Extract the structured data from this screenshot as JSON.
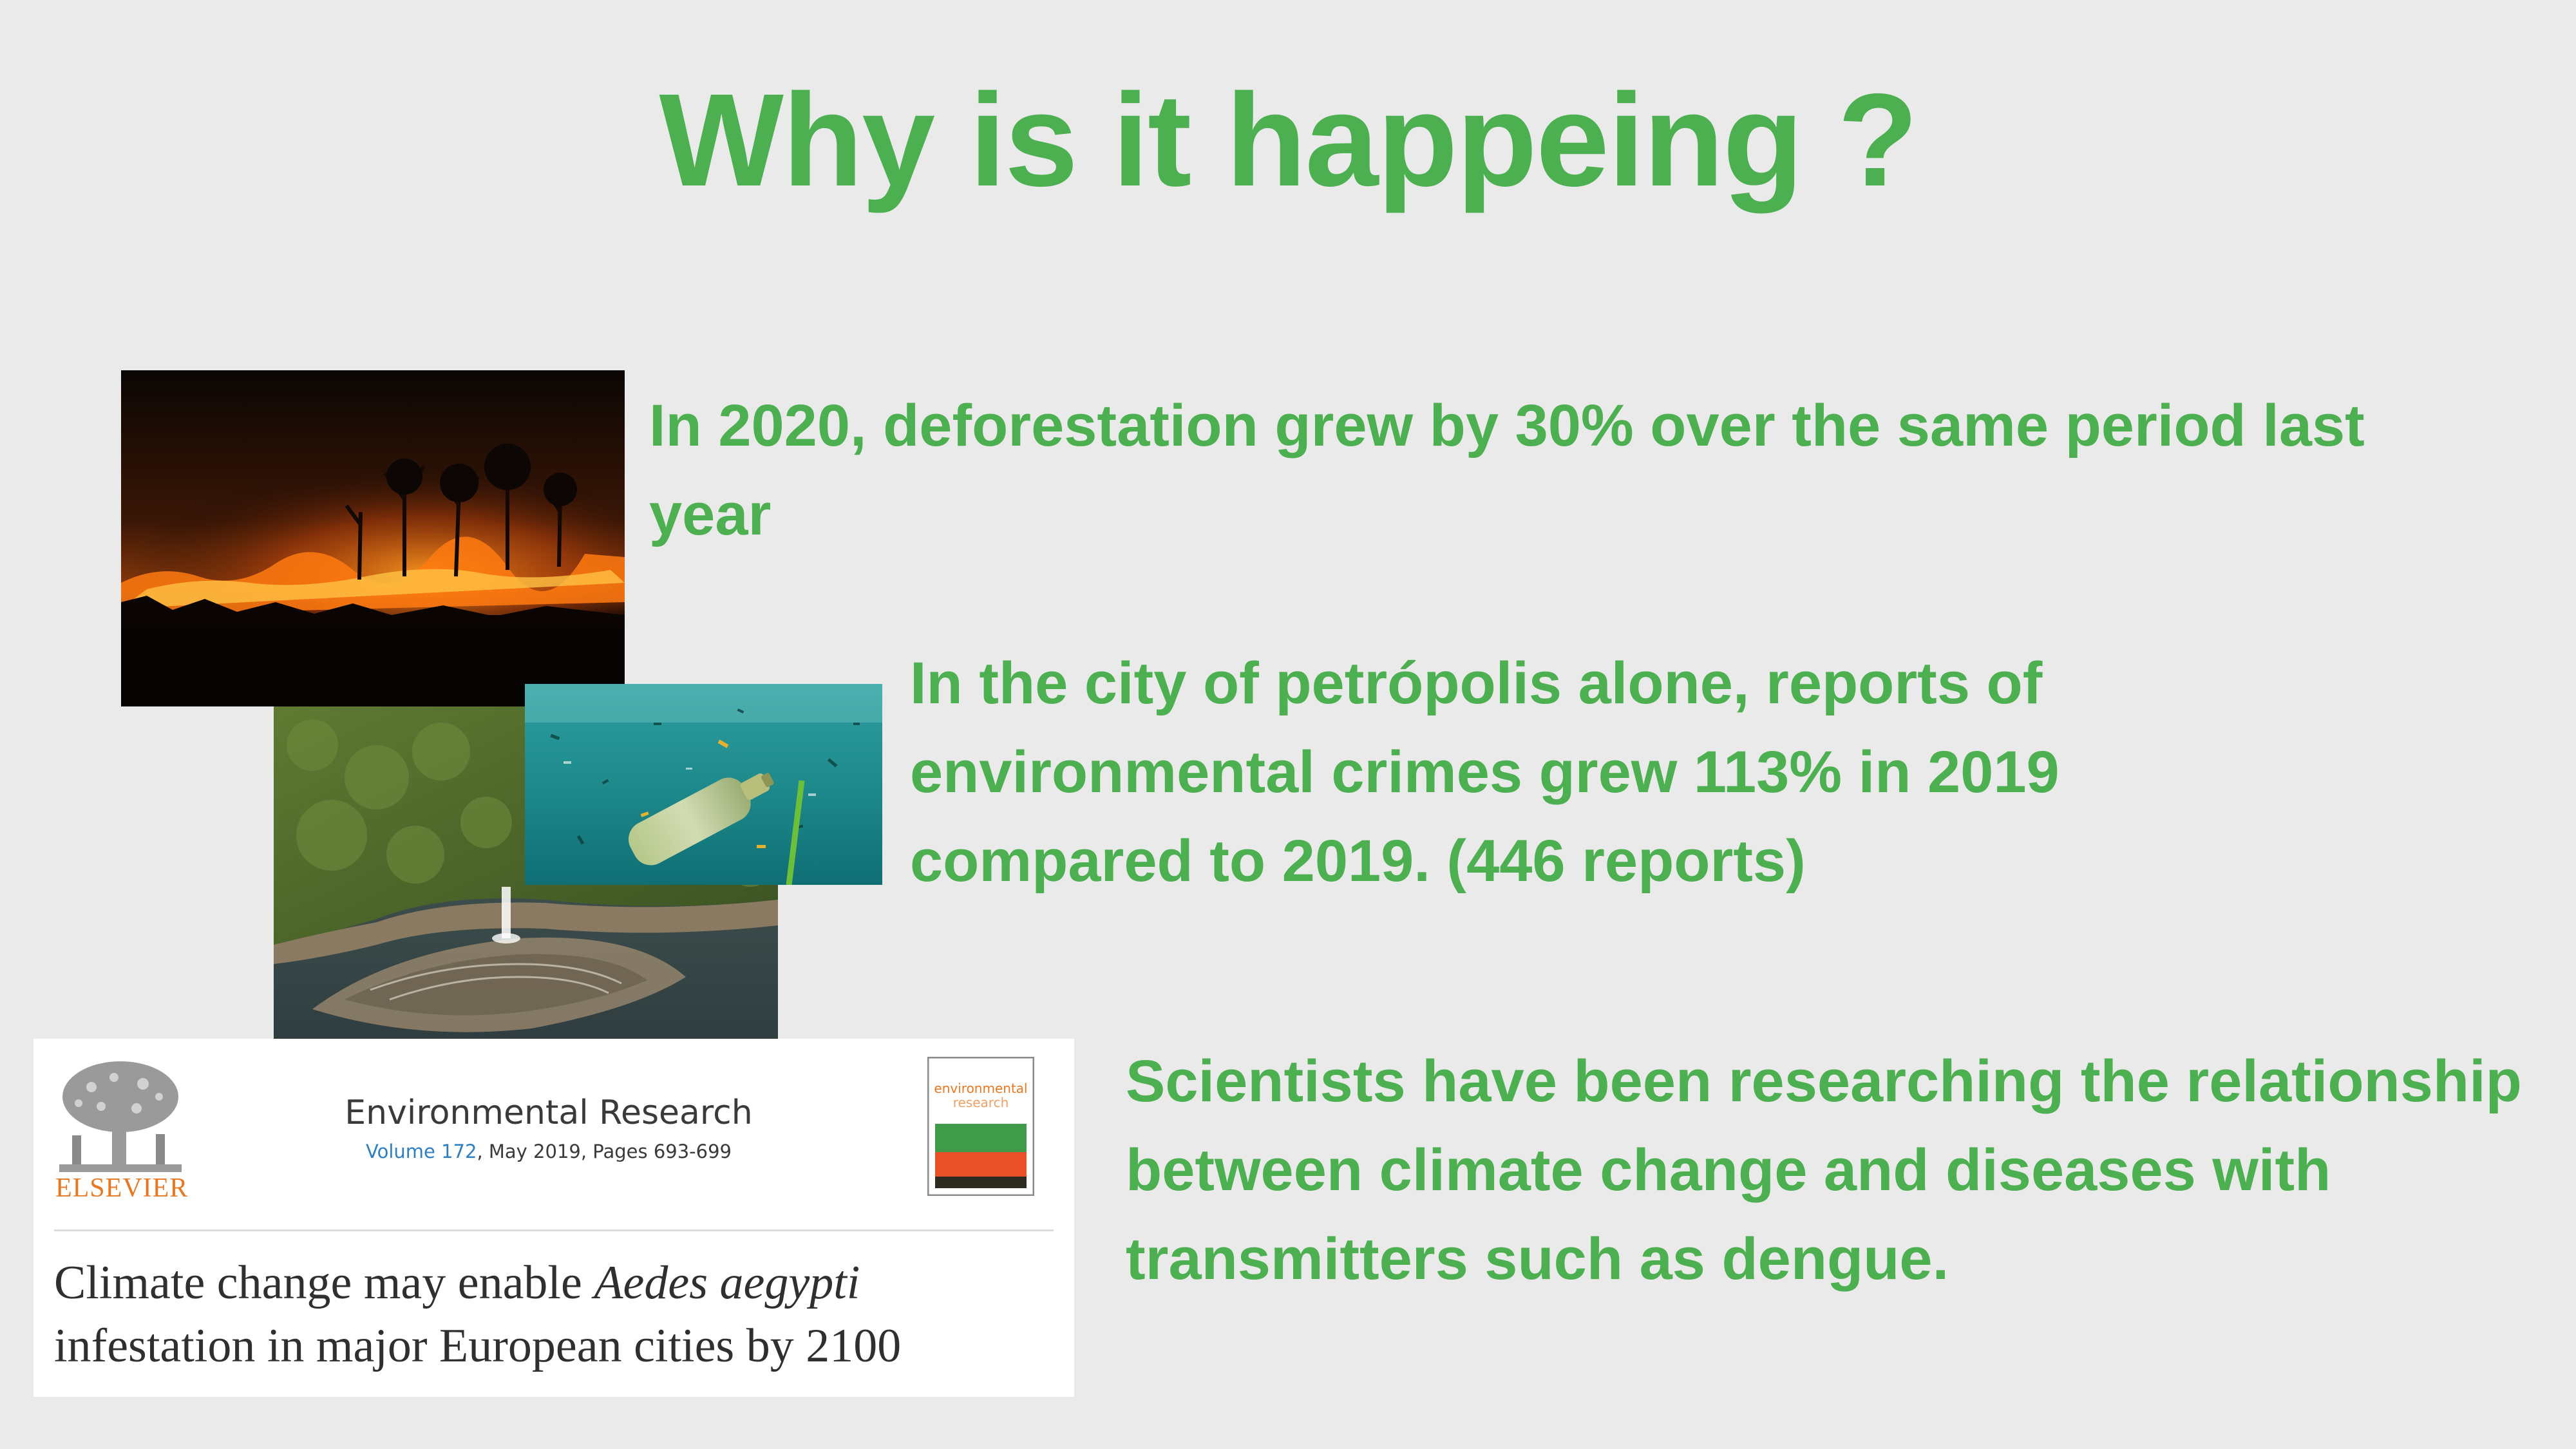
{
  "slide": {
    "title": "Why is it happeing ?",
    "accent_color": "#4caf50",
    "background_color": "#ebeaea"
  },
  "facts": [
    {
      "text": "In 2020, deforestation grew by 30% over the same period last year"
    },
    {
      "text": "In the city of petrópolis alone, reports of environmental crimes grew 113% in 2019 compared to 2019. (446 reports)"
    },
    {
      "text": "Scientists have been researching the relationship between climate change and diseases with transmitters such as dengue."
    }
  ],
  "images": {
    "fire": "forest-fire-photo",
    "coast": "coastal-sewage-outfall-photo",
    "ocean": "plastic-pollution-underwater-photo"
  },
  "paper": {
    "publisher": "ELSEVIER",
    "journal": "Environmental Research",
    "volume_link": "Volume 172",
    "volume_rest": ", May 2019, Pages 693-699",
    "cover_title_line1": "environmental",
    "cover_title_line2": "research",
    "title_line1_prefix": "Climate change may enable ",
    "title_species": "Aedes aegypti",
    "title_line2": "infestation in major European cities by 2100"
  }
}
